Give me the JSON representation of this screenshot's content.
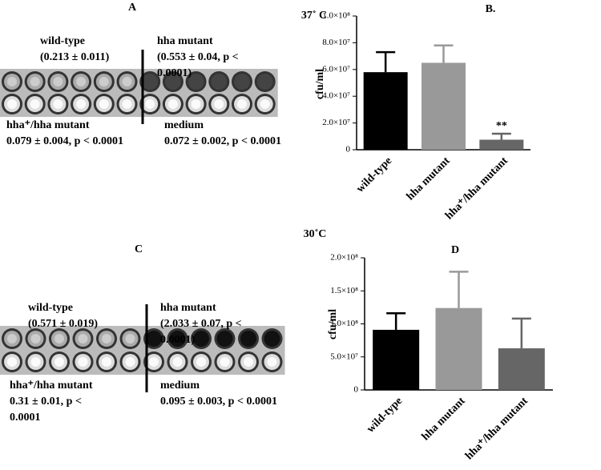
{
  "panels": [
    {
      "label": "A",
      "temperature": "37˚ C",
      "groups": [
        {
          "name": "wild-type",
          "lines": [
            "(0.213 ± 0.011)"
          ]
        },
        {
          "name": "hha mutant",
          "lines": [
            "(0.553 ± 0.04, p <",
            "0.0001)"
          ]
        },
        {
          "name": "hha⁺/hha mutant",
          "lines": [
            "0.079 ± 0.004, p < 0.0001"
          ]
        },
        {
          "name": "medium",
          "lines": [
            "0.072 ± 0.002, p < 0.0001"
          ]
        }
      ]
    },
    {
      "label": "C",
      "temperature": "30˚C",
      "groups": [
        {
          "name": "wild-type",
          "lines": [
            "(0.571 ± 0.019)"
          ]
        },
        {
          "name": "hha mutant",
          "lines": [
            "(2.033 ± 0.07, p <",
            "0.0001)"
          ]
        },
        {
          "name": "hha⁺/hha mutant",
          "lines": [
            "0.31 ± 0.01, p <",
            "0.0001"
          ]
        },
        {
          "name": "medium",
          "lines": [
            "0.095 ± 0.003, p < 0.0001"
          ]
        }
      ]
    }
  ],
  "chart_data": [
    {
      "type": "bar",
      "title": "B.",
      "y_label": "cfu/ml",
      "categories": [
        "wild-type",
        "hha mutant",
        "hha⁺/hha mutant"
      ],
      "values": [
        58000000,
        65000000,
        7500000
      ],
      "errors": [
        15000000,
        13000000,
        4500000
      ],
      "colors": [
        "#000000",
        "#999999",
        "#666666"
      ],
      "annotation": "**",
      "ylim": [
        0,
        100000000
      ],
      "yticks": [
        0,
        {
          "value": 20000000,
          "label": "2.0×10⁷"
        },
        {
          "value": 40000000,
          "label": "4.0×10⁷"
        },
        {
          "value": 60000000,
          "label": "6.0×10⁷"
        },
        {
          "value": 80000000,
          "label": "8.0×10⁷"
        },
        {
          "value": 100000000,
          "label": "1.0×10⁸"
        }
      ]
    },
    {
      "type": "bar",
      "title": "D",
      "y_label": "cfu/ml",
      "categories": [
        "wild-type",
        "hha mutant",
        "hha⁺/hha mutant"
      ],
      "values": [
        91000000,
        124000000,
        63000000
      ],
      "errors": [
        25000000,
        55000000,
        45000000
      ],
      "colors": [
        "#000000",
        "#999999",
        "#666666"
      ],
      "ylim": [
        0,
        200000000
      ],
      "yticks": [
        0,
        {
          "value": 50000000,
          "label": "5.0×10⁷"
        },
        {
          "value": 100000000,
          "label": "1.0×10⁸"
        },
        {
          "value": 150000000,
          "label": "1.5×10⁸"
        },
        {
          "value": 200000000,
          "label": "2.0×10⁸"
        }
      ]
    }
  ]
}
